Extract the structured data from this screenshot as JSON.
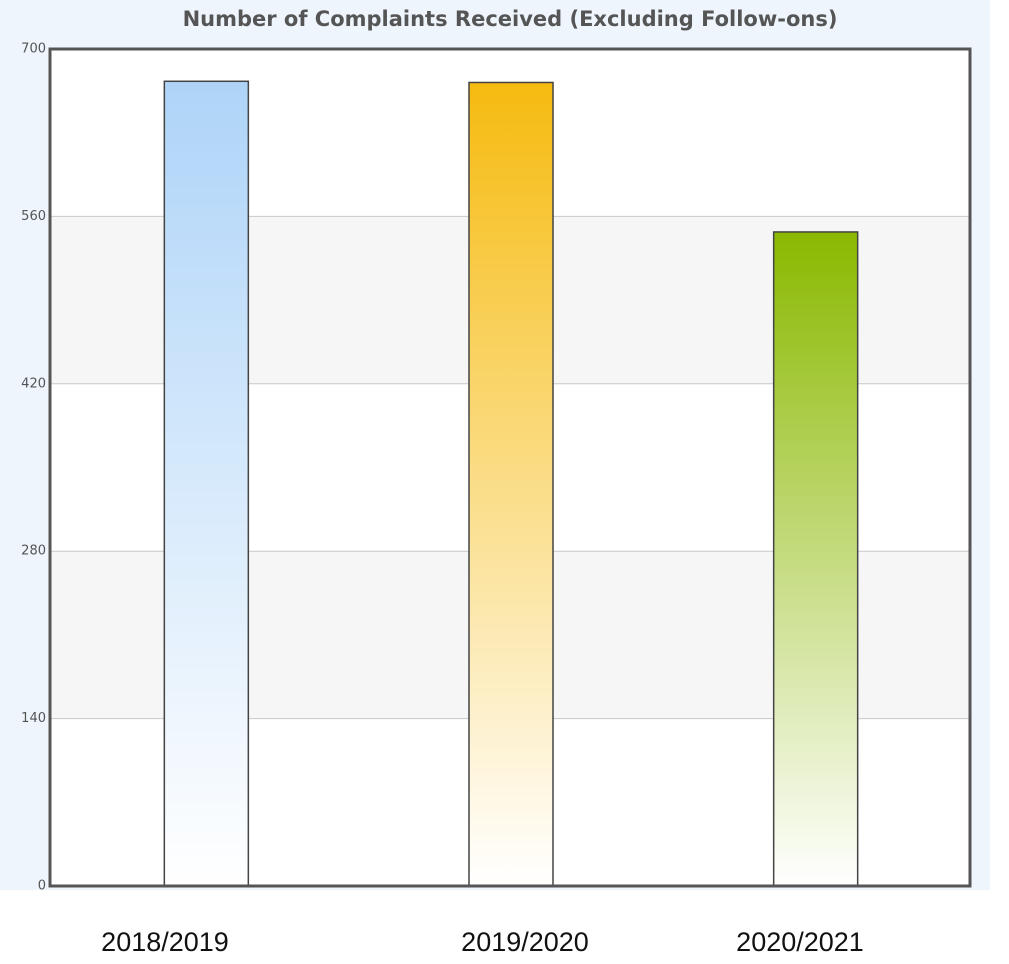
{
  "chart_data": {
    "type": "bar",
    "title": "Number of Complaints Received (Excluding Follow-ons)",
    "categories": [
      "2018/2019",
      "2019/2020",
      "2020/2021"
    ],
    "values": [
      673,
      672,
      547
    ],
    "colors": [
      "#aed4f8",
      "#f6bb10",
      "#8ab800"
    ],
    "ylim": [
      0,
      700
    ],
    "yticks": [
      0,
      140,
      280,
      420,
      560,
      700
    ],
    "grid": true
  }
}
